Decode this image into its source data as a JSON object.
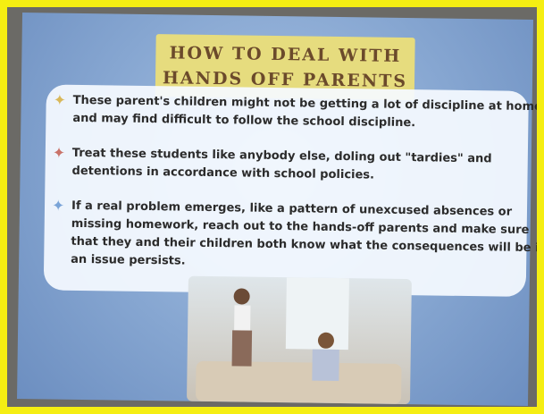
{
  "slide": {
    "title": [
      "HOW TO DEAL WITH",
      "HANDS OFF PARENTS"
    ],
    "bullets": [
      {
        "lines": [
          "These parent's children might not be getting a lot of discipline at home,",
          "and may find difficult to follow the school discipline."
        ]
      },
      {
        "lines": [
          "Treat these students like anybody else, doling out \"tardies\" and",
          "detentions in accordance with school policies."
        ]
      },
      {
        "lines": [
          "If a real problem emerges, like a pattern of unexcused absences or",
          "missing homework, reach out to the hands-off parents and make sure",
          "that they and their children both know what the consequences will be if",
          "an issue persists."
        ]
      }
    ]
  }
}
